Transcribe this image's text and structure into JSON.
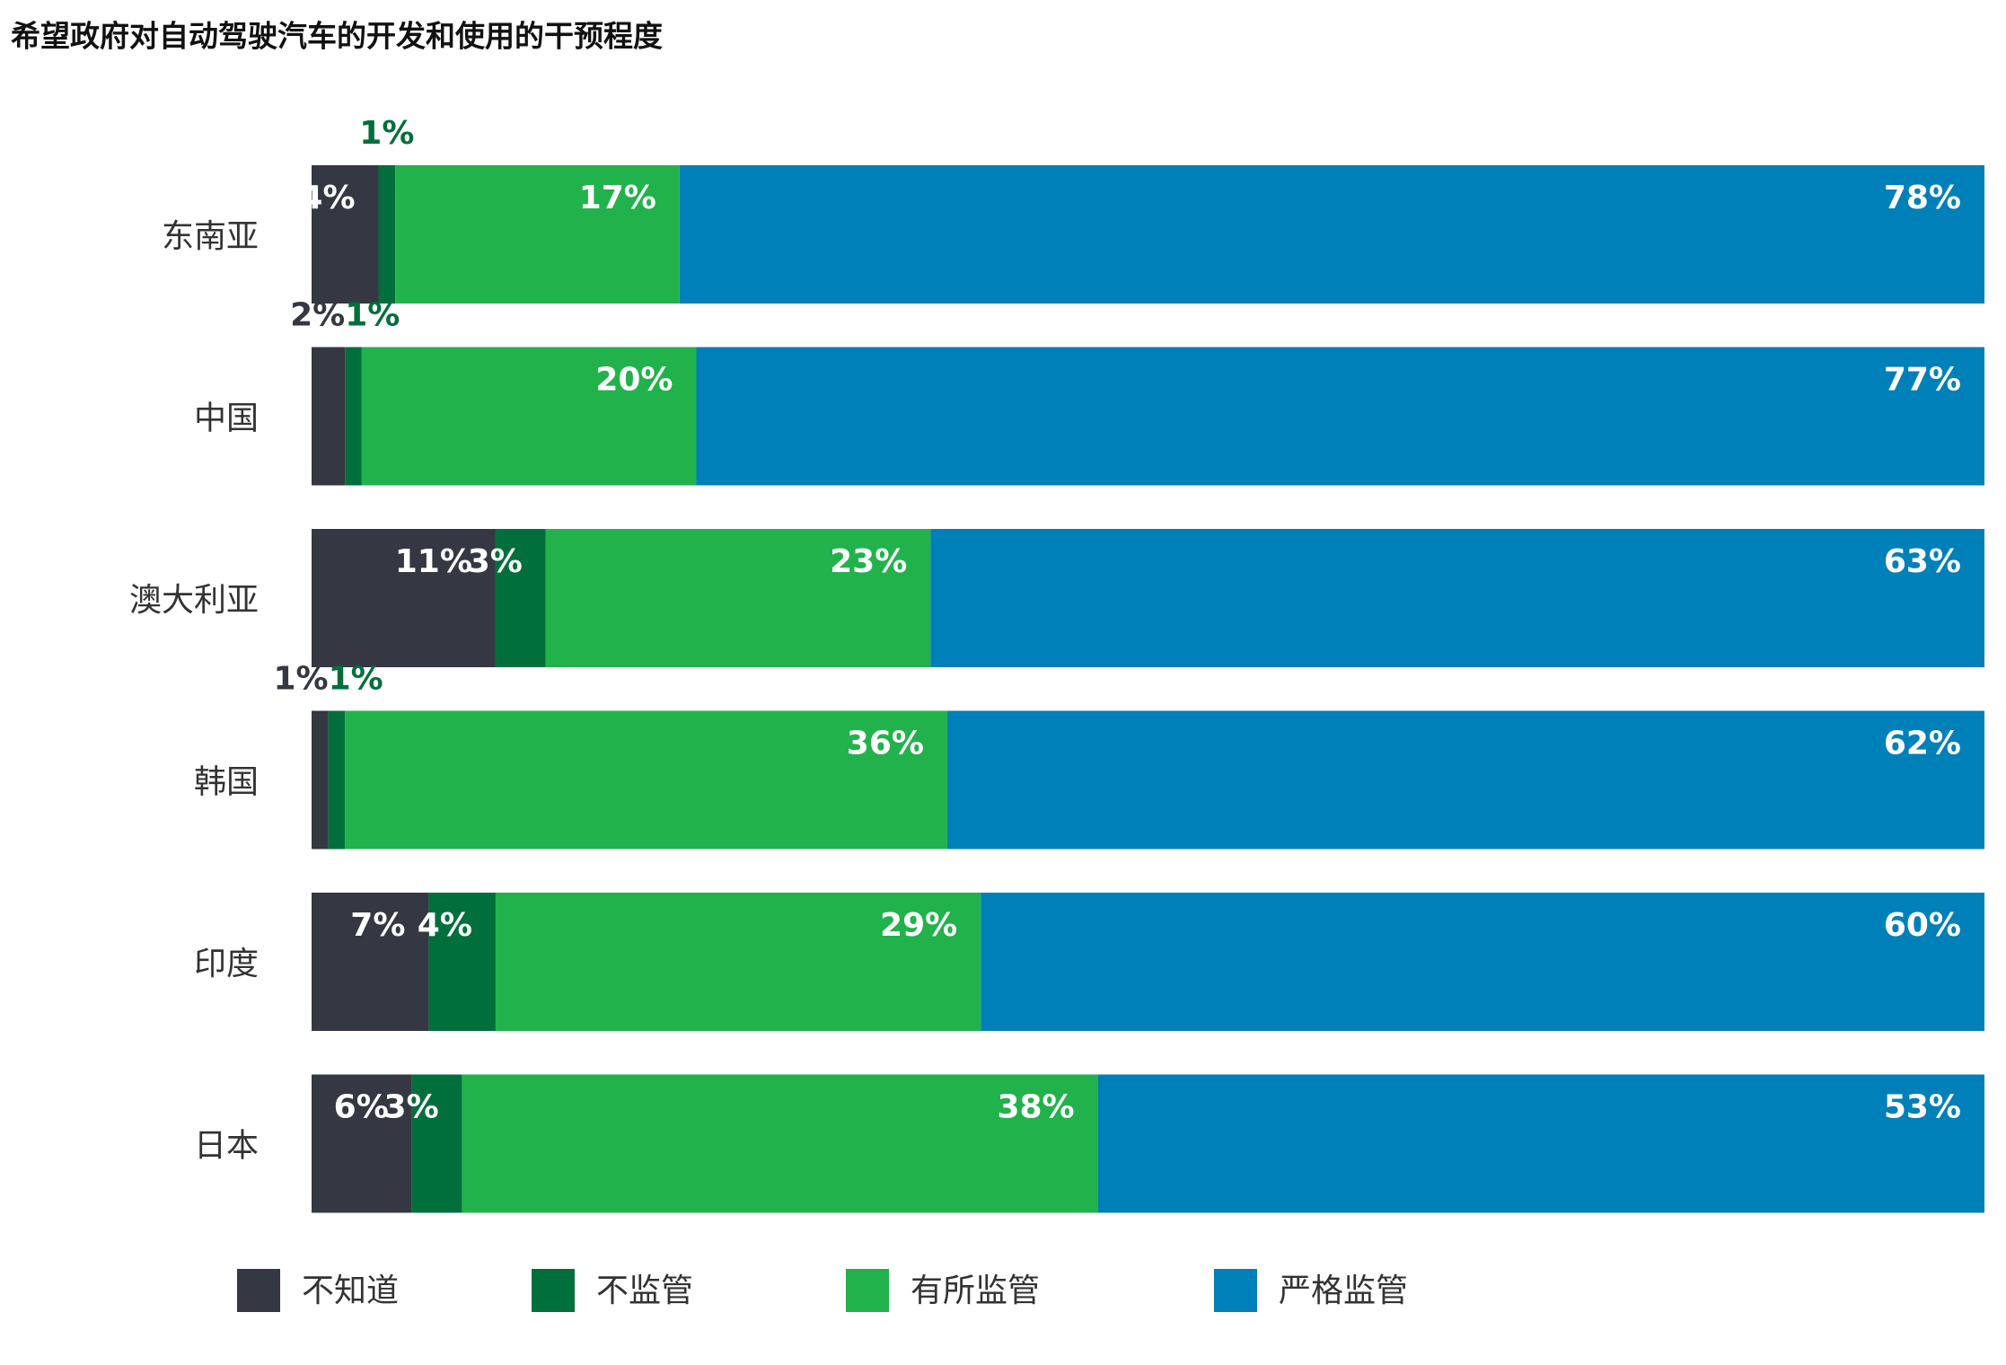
{
  "chart_data": {
    "type": "stacked_barh",
    "title": "希望政府对自动驾驶汽车的开发和使用的干预程度",
    "categories": [
      "东南亚",
      "中国",
      "澳大利亚",
      "韩国",
      "印度",
      "日本"
    ],
    "series": [
      {
        "name": "不知道",
        "color": "#353842",
        "values": [
          4,
          2,
          11,
          1,
          7,
          6
        ],
        "value_labels": [
          "4%",
          "2%",
          "11%",
          "1%",
          "7%",
          "6%"
        ]
      },
      {
        "name": "不监管",
        "color": "#006f3c",
        "values": [
          1,
          1,
          3,
          1,
          4,
          3
        ],
        "value_labels": [
          "1%",
          "1%",
          "3%",
          "1%",
          "4%",
          "3%"
        ]
      },
      {
        "name": "有所监管",
        "color": "#22b24c",
        "values": [
          17,
          20,
          23,
          36,
          29,
          38
        ],
        "value_labels": [
          "17%",
          "20%",
          "23%",
          "36%",
          "29%",
          "38%"
        ]
      },
      {
        "name": "严格监管",
        "color": "#0080b8",
        "values": [
          78,
          77,
          63,
          62,
          60,
          53
        ],
        "value_labels": [
          "78%",
          "77%",
          "63%",
          "62%",
          "60%",
          "53%"
        ]
      }
    ],
    "legend": "bottom"
  }
}
